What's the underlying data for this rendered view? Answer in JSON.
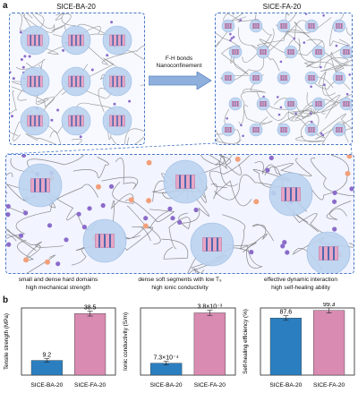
{
  "panel_a": {
    "letter": "a",
    "left_title": "SICE-BA-20",
    "right_title": "SICE-FA-20",
    "arrow_line1": "F-H bonds",
    "arrow_line2": "Nanoconfinement",
    "captions": [
      {
        "line1": "small and dense hard domains",
        "line2": "high mechanical strength"
      },
      {
        "line1": "dense soft segments with low T₉",
        "line2": "high ionic conductivity"
      },
      {
        "line1": "effective dynamic interaction",
        "line2": "high self-healing ability"
      }
    ]
  },
  "panel_b": {
    "letter": "b"
  },
  "colors": {
    "blue_bar": "#2b7fc1",
    "pink_bar": "#d98bb2",
    "dashed_border": "#4a78c8",
    "sphere": "#bcd3ef",
    "domain": "#e7a6c6",
    "bead": "#8b6bc9",
    "orange": "#f2a07b"
  },
  "chart_data": [
    {
      "type": "bar",
      "categories": [
        "SICE-BA-20",
        "SICE-FA-20"
      ],
      "values": [
        9.2,
        38.5
      ],
      "labels": [
        "9.2",
        "38.5"
      ],
      "ylabel": "Tensile strength (MPa)",
      "ylim": [
        0,
        42
      ]
    },
    {
      "type": "bar",
      "categories": [
        "SICE-BA-20",
        "SICE-FA-20"
      ],
      "values": [
        0.00073,
        0.0038
      ],
      "labels": [
        "7.3×10⁻⁴",
        "3.8×10⁻³"
      ],
      "ylabel": "Ionic conductivity (S/m)",
      "ylim": [
        0,
        0.0041
      ]
    },
    {
      "type": "bar",
      "categories": [
        "SICE-BA-20",
        "SICE-FA-20"
      ],
      "values": [
        87.6,
        99.3
      ],
      "labels": [
        "87.6",
        "99.3"
      ],
      "ylabel": "Self-healing efficiency (%)",
      "ylim": [
        0,
        103
      ]
    }
  ]
}
